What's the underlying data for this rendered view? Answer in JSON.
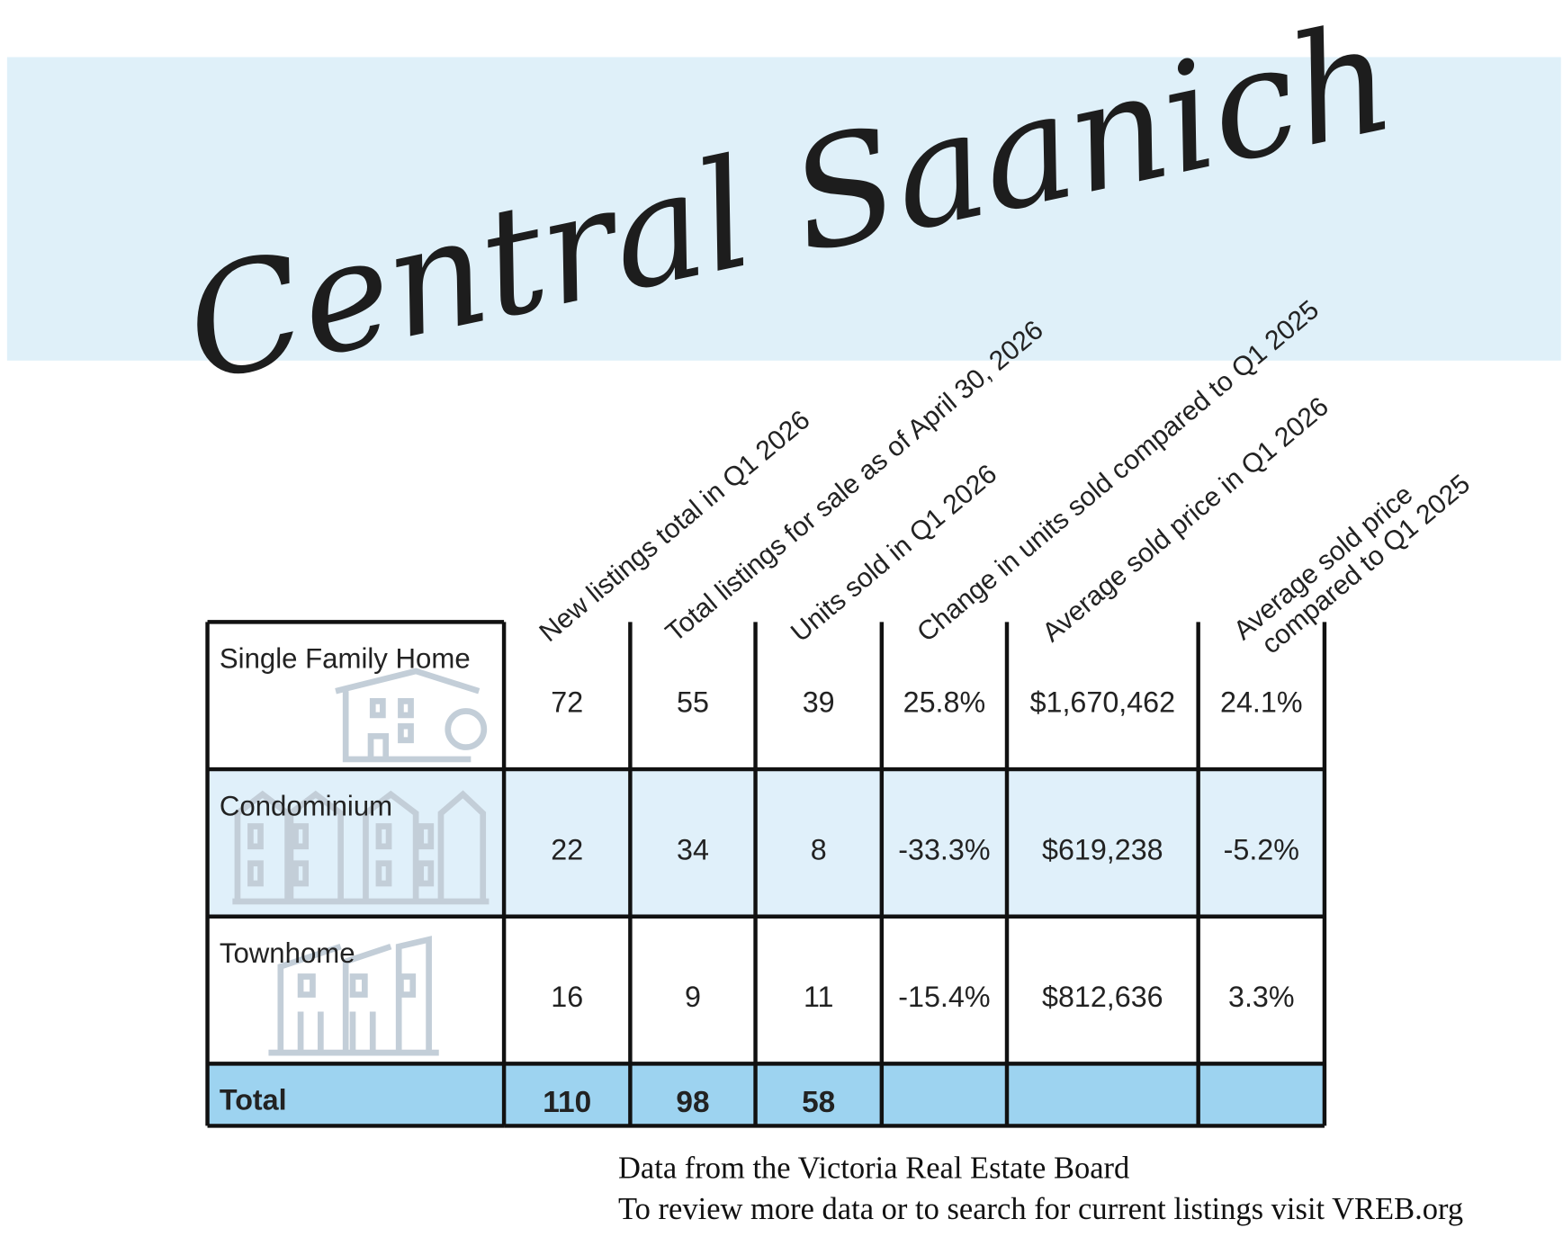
{
  "header": {
    "title": "Central Saanich"
  },
  "table": {
    "columns": [
      "New listings total in Q1 2026",
      "Total listings for sale as of April 30, 2026",
      "Units sold in Q1 2026",
      "Change in units sold compared to Q1 2025",
      "Average sold price in Q1 2026",
      [
        "Average sold price",
        "compared to Q1 2025"
      ]
    ],
    "rows": [
      [
        "Single Family Home",
        "72",
        "55",
        "39",
        "25.8%",
        "$1,670,462",
        "24.1%"
      ],
      [
        "Condominium",
        "22",
        "34",
        "8",
        "-33.3%",
        "$619,238",
        "-5.2%"
      ],
      [
        "Townhome",
        "16",
        "9",
        "11",
        "-15.4%",
        "$812,636",
        "3.3%"
      ]
    ],
    "total": [
      "Total",
      "110",
      "98",
      "58"
    ]
  },
  "footer": [
    "Data from the Victoria Real Estate Board",
    "To review more data or to search for current listings visit VREB.org"
  ]
}
